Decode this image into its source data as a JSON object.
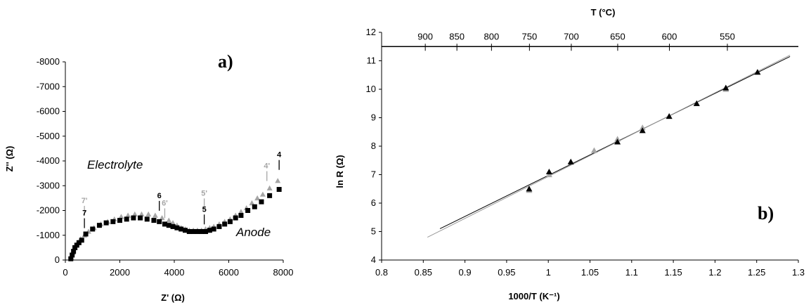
{
  "colors": {
    "series_black": "#000000",
    "series_gray": "#a6a6a6",
    "axis": "#000000",
    "fit_gray": "#9a9a9a"
  },
  "chart_data": [
    {
      "type": "scatter",
      "panel_label": "a)",
      "xlabel": "Z' (Ω)",
      "ylabel": "Z'' (Ω)",
      "xlim": [
        0,
        8000
      ],
      "ylim": [
        -8000,
        0
      ],
      "y_inverted": true,
      "xticks": [
        "0",
        "2000",
        "4000",
        "6000",
        "8000"
      ],
      "yticks": [
        "0",
        "-1000",
        "-2000",
        "-3000",
        "-4000",
        "-5000",
        "-6000",
        "-7000",
        "-8000"
      ],
      "grid": false,
      "region_labels": [
        "Electrolyte",
        "Anode"
      ],
      "series": [
        {
          "color": "#a6a6a6",
          "marker": "triangle",
          "x": [
            220,
            280,
            360,
            450,
            560,
            700,
            850,
            1050,
            1300,
            1550,
            1800,
            2050,
            2300,
            2550,
            2800,
            3050,
            3300,
            3550,
            3800,
            3950,
            4100,
            4250,
            4400,
            4550,
            4700,
            4850,
            5000,
            5150,
            5300,
            5450,
            5650,
            5850,
            6050,
            6250,
            6450,
            6650,
            6850,
            7050,
            7250,
            7500,
            7800
          ],
          "y": [
            -100,
            -300,
            -500,
            -700,
            -850,
            -1000,
            -1150,
            -1300,
            -1450,
            -1550,
            -1650,
            -1750,
            -1800,
            -1850,
            -1850,
            -1850,
            -1800,
            -1700,
            -1600,
            -1500,
            -1400,
            -1300,
            -1250,
            -1200,
            -1200,
            -1200,
            -1200,
            -1250,
            -1300,
            -1350,
            -1450,
            -1550,
            -1650,
            -1800,
            -1950,
            -2100,
            -2300,
            -2500,
            -2650,
            -2900,
            -3200
          ]
        },
        {
          "color": "#000000",
          "marker": "square",
          "x": [
            200,
            250,
            300,
            350,
            420,
            500,
            600,
            750,
            1000,
            1250,
            1500,
            1750,
            2000,
            2250,
            2500,
            2750,
            3000,
            3250,
            3450,
            3650,
            3800,
            3950,
            4100,
            4250,
            4400,
            4550,
            4700,
            4850,
            5000,
            5150,
            5300,
            5450,
            5650,
            5850,
            6050,
            6250,
            6450,
            6700,
            6950,
            7200,
            7500,
            7850
          ],
          "y": [
            -50,
            -200,
            -350,
            -500,
            -600,
            -700,
            -800,
            -1050,
            -1250,
            -1400,
            -1500,
            -1550,
            -1600,
            -1650,
            -1700,
            -1700,
            -1650,
            -1600,
            -1550,
            -1450,
            -1400,
            -1350,
            -1300,
            -1250,
            -1200,
            -1150,
            -1150,
            -1150,
            -1150,
            -1150,
            -1200,
            -1250,
            -1350,
            -1450,
            -1550,
            -1700,
            -1800,
            -2000,
            -2150,
            -2350,
            -2600,
            -2850
          ]
        }
      ],
      "annotations": [
        {
          "text": "7'",
          "x": 700,
          "y": -2300,
          "color": "#a6a6a6"
        },
        {
          "text": "7",
          "x": 700,
          "y": -1800,
          "color": "#000000"
        },
        {
          "text": "6",
          "x": 3450,
          "y": -2500,
          "color": "#000000"
        },
        {
          "text": "6'",
          "x": 3650,
          "y": -2200,
          "color": "#a6a6a6"
        },
        {
          "text": "5'",
          "x": 5100,
          "y": -2600,
          "color": "#a6a6a6"
        },
        {
          "text": "5",
          "x": 5100,
          "y": -1950,
          "color": "#000000"
        },
        {
          "text": "4'",
          "x": 7400,
          "y": -3700,
          "color": "#a6a6a6"
        },
        {
          "text": "4",
          "x": 7850,
          "y": -4150,
          "color": "#000000"
        }
      ]
    },
    {
      "type": "scatter",
      "panel_label": "b)",
      "xlabel": "1000/T (K⁻¹)",
      "ylabel": "ln R (Ω)",
      "top_axis_label": "T (°C)",
      "xlim": [
        0.8,
        1.3
      ],
      "ylim": [
        4,
        12
      ],
      "xticks": [
        "0.8",
        "0.85",
        "0.9",
        "0.95",
        "1",
        "1.05",
        "1.1",
        "1.15",
        "1.2",
        "1.25",
        "1.3"
      ],
      "yticks": [
        "4",
        "5",
        "6",
        "7",
        "8",
        "9",
        "10",
        "11",
        "12"
      ],
      "top_ticks": [
        {
          "label": "900",
          "c": 900
        },
        {
          "label": "850",
          "c": 850
        },
        {
          "label": "800",
          "c": 800
        },
        {
          "label": "750",
          "c": 750
        },
        {
          "label": "700",
          "c": 700
        },
        {
          "label": "650",
          "c": 650
        },
        {
          "label": "600",
          "c": 600
        },
        {
          "label": "550",
          "c": 550
        }
      ],
      "top_axis_y": 11.5,
      "grid": false,
      "series": [
        {
          "color": "#a6a6a6",
          "marker": "triangle",
          "x": [
            0.977,
            1.001,
            1.027,
            1.055,
            1.083,
            1.113,
            1.145,
            1.178,
            1.213,
            1.251
          ],
          "y": [
            6.45,
            7.0,
            7.45,
            7.85,
            8.25,
            8.65,
            9.05,
            9.5,
            10.0,
            10.6
          ]
        },
        {
          "color": "#000000",
          "marker": "triangle",
          "x": [
            0.977,
            1.001,
            1.027,
            1.083,
            1.113,
            1.145,
            1.178,
            1.213,
            1.251
          ],
          "y": [
            6.5,
            7.1,
            7.45,
            8.15,
            8.55,
            9.05,
            9.5,
            10.05,
            10.6
          ]
        }
      ],
      "fit_lines": [
        {
          "color": "#000000",
          "x": [
            0.87,
            1.29
          ],
          "y": [
            5.1,
            11.15
          ]
        },
        {
          "color": "#9a9a9a",
          "x": [
            0.855,
            1.29
          ],
          "y": [
            4.8,
            11.2
          ]
        }
      ]
    }
  ]
}
